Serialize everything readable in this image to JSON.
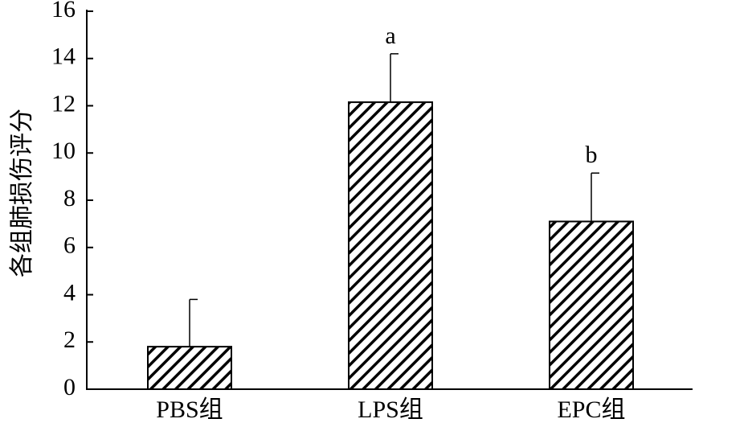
{
  "chart_data": {
    "type": "bar",
    "y_label": "各组肺损伤评分",
    "categories": [
      "PBS组",
      "LPS组",
      "EPC组"
    ],
    "values": [
      1.8,
      12.15,
      7.1
    ],
    "errors": [
      2.0,
      2.05,
      2.05
    ],
    "annotations": [
      null,
      "a",
      "b"
    ],
    "color": "#000000",
    "ylim": [
      0,
      16
    ],
    "yticks": [
      0,
      2,
      4,
      6,
      8,
      10,
      12,
      14,
      16
    ],
    "grid": false
  }
}
